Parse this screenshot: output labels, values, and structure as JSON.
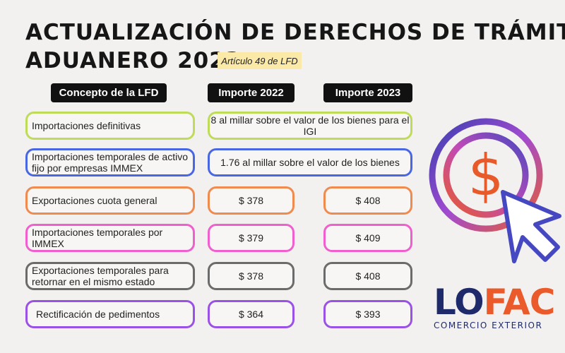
{
  "title": {
    "line1": "ACTUALIZACIÓN DE DERECHOS DE TRÁMITE",
    "line2": "ADUANERO 2023"
  },
  "note": "Artículo 49 de LFD",
  "headers": {
    "concept": "Concepto de la LFD",
    "y2022": "Importe 2022",
    "y2023": "Importe 2023"
  },
  "rows": [
    {
      "concept": "Importaciones definitivas",
      "merged_value": "8 al millar sobre el valor de los bienes para el IGI",
      "color": "#bfdb5a"
    },
    {
      "concept": "Importaciones temporales de activo fijo por empresas IMMEX",
      "merged_value": "1.76 al millar sobre el valor de los bienes",
      "color": "#4a67e3"
    },
    {
      "concept": "Exportaciones cuota general",
      "y2022": "$ 378",
      "y2023": "$ 408",
      "color": "#f08b50"
    },
    {
      "concept": "Importaciones temporales por IMMEX",
      "y2022": "$ 379",
      "y2023": "$ 409",
      "color": "#ef5fcd"
    },
    {
      "concept": "Exportaciones temporales para retornar en el mismo estado",
      "y2022": "$ 378",
      "y2023": "$ 408",
      "color": "#6b6b6b"
    },
    {
      "concept": "Rectificación de pedimentos",
      "y2022": "$ 364",
      "y2023": "$ 393",
      "color": "#9a52e6"
    }
  ],
  "icons": {
    "illustration": "dollar-cursor-icon"
  },
  "logo": {
    "part1": "LO",
    "part2": "FAC",
    "tagline": "COMERCIO EXTERIOR"
  }
}
